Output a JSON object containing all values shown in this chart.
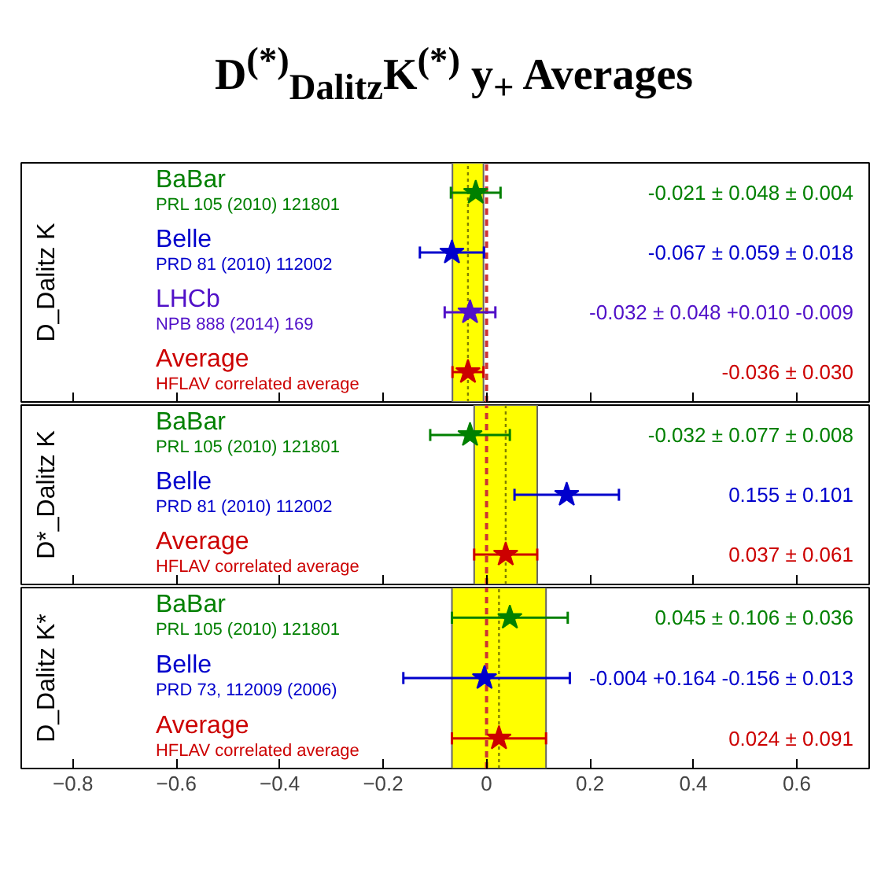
{
  "chart_data": [
    {
      "type": "scatter",
      "orientation": "horizontal",
      "title": "D$^{(*)}$$_{Dalitz}$K$^{(*)}$ y$_{+}$ Averages",
      "ylabel": "D_Dalitz K",
      "marker": "star",
      "tick_labels": "y",
      "categories": [
        "BaBar\nPRL 105 (2010) 121801",
        "Belle\nPRD 81 (2010) 112002",
        "LHCb\nNPB 888 (2014) 169",
        "Average\nHFLAV correlated average"
      ],
      "values": [
        -0.021,
        -0.067,
        -0.032,
        -0.036
      ],
      "errors": [
        0.048,
        0.062,
        0.049,
        0.03
      ],
      "colors": [
        "#008000",
        "#0000cc",
        "#5010c8",
        "#cc0000"
      ],
      "annotations": [
        "-0.021 ± 0.048 ± 0.004",
        "-0.067 ± 0.059 ± 0.018",
        "-0.032 ± 0.048 +0.010 -0.009",
        "-0.036 ± 0.030"
      ],
      "bands": [
        {
          "axis": "x",
          "from": -0.066,
          "to": -0.006,
          "color": "#ffff00"
        }
      ],
      "ref_lines": [
        {
          "axis": "x",
          "value": -0.036,
          "color": "#808000",
          "line_style": "dotted"
        },
        {
          "axis": "x",
          "value": 0,
          "color": "#cc3333",
          "line_style": "dashed"
        }
      ],
      "xlim": [
        -0.9,
        0.74
      ],
      "xticks": [
        -0.8,
        -0.6,
        -0.4,
        -0.2,
        0,
        0.2,
        0.4,
        0.6
      ]
    },
    {
      "type": "scatter",
      "orientation": "horizontal",
      "ylabel": "D*_Dalitz K",
      "marker": "star",
      "tick_labels": "y",
      "categories": [
        "BaBar\nPRL 105 (2010) 121801",
        "Belle\nPRD 81 (2010) 112002",
        "Average\nHFLAV correlated average"
      ],
      "values": [
        -0.032,
        0.155,
        0.037
      ],
      "errors": [
        0.077,
        0.101,
        0.061
      ],
      "colors": [
        "#008000",
        "#0000cc",
        "#cc0000"
      ],
      "annotations": [
        "-0.032 ± 0.077 ± 0.008",
        "0.155 ± 0.101",
        "0.037 ± 0.061"
      ],
      "bands": [
        {
          "axis": "x",
          "from": -0.024,
          "to": 0.098,
          "color": "#ffff00"
        }
      ],
      "ref_lines": [
        {
          "axis": "x",
          "value": 0.037,
          "color": "#808000",
          "line_style": "dotted"
        },
        {
          "axis": "x",
          "value": 0,
          "color": "#cc3333",
          "line_style": "dashed"
        }
      ],
      "xlim": [
        -0.9,
        0.74
      ],
      "xticks": [
        -0.8,
        -0.6,
        -0.4,
        -0.2,
        0,
        0.2,
        0.4,
        0.6
      ]
    },
    {
      "type": "scatter",
      "orientation": "horizontal",
      "ylabel": "D_Dalitz K*",
      "marker": "star",
      "categories": [
        "BaBar\nPRL 105 (2010) 121801",
        "Belle\nPRD 73, 112009 (2006)",
        "Average\nHFLAV correlated average"
      ],
      "values": [
        0.045,
        -0.004,
        0.024
      ],
      "errors": [
        0.112,
        [
          -0.161,
          0.161
        ],
        0.091
      ],
      "colors": [
        "#008000",
        "#0000cc",
        "#cc0000"
      ],
      "annotations": [
        "0.045 ± 0.106 ± 0.036",
        "-0.004 +0.164 -0.156 ± 0.013",
        "0.024 ± 0.091"
      ],
      "bands": [
        {
          "axis": "x",
          "from": -0.067,
          "to": 0.115,
          "color": "#ffff00"
        }
      ],
      "ref_lines": [
        {
          "axis": "x",
          "value": 0.024,
          "color": "#808000",
          "line_style": "dotted"
        },
        {
          "axis": "x",
          "value": 0,
          "color": "#cc3333",
          "line_style": "dashed"
        }
      ],
      "xlim": [
        -0.9,
        0.74
      ],
      "xticks": [
        -0.8,
        -0.6,
        -0.4,
        -0.2,
        0,
        0.2,
        0.4,
        0.6
      ]
    }
  ]
}
